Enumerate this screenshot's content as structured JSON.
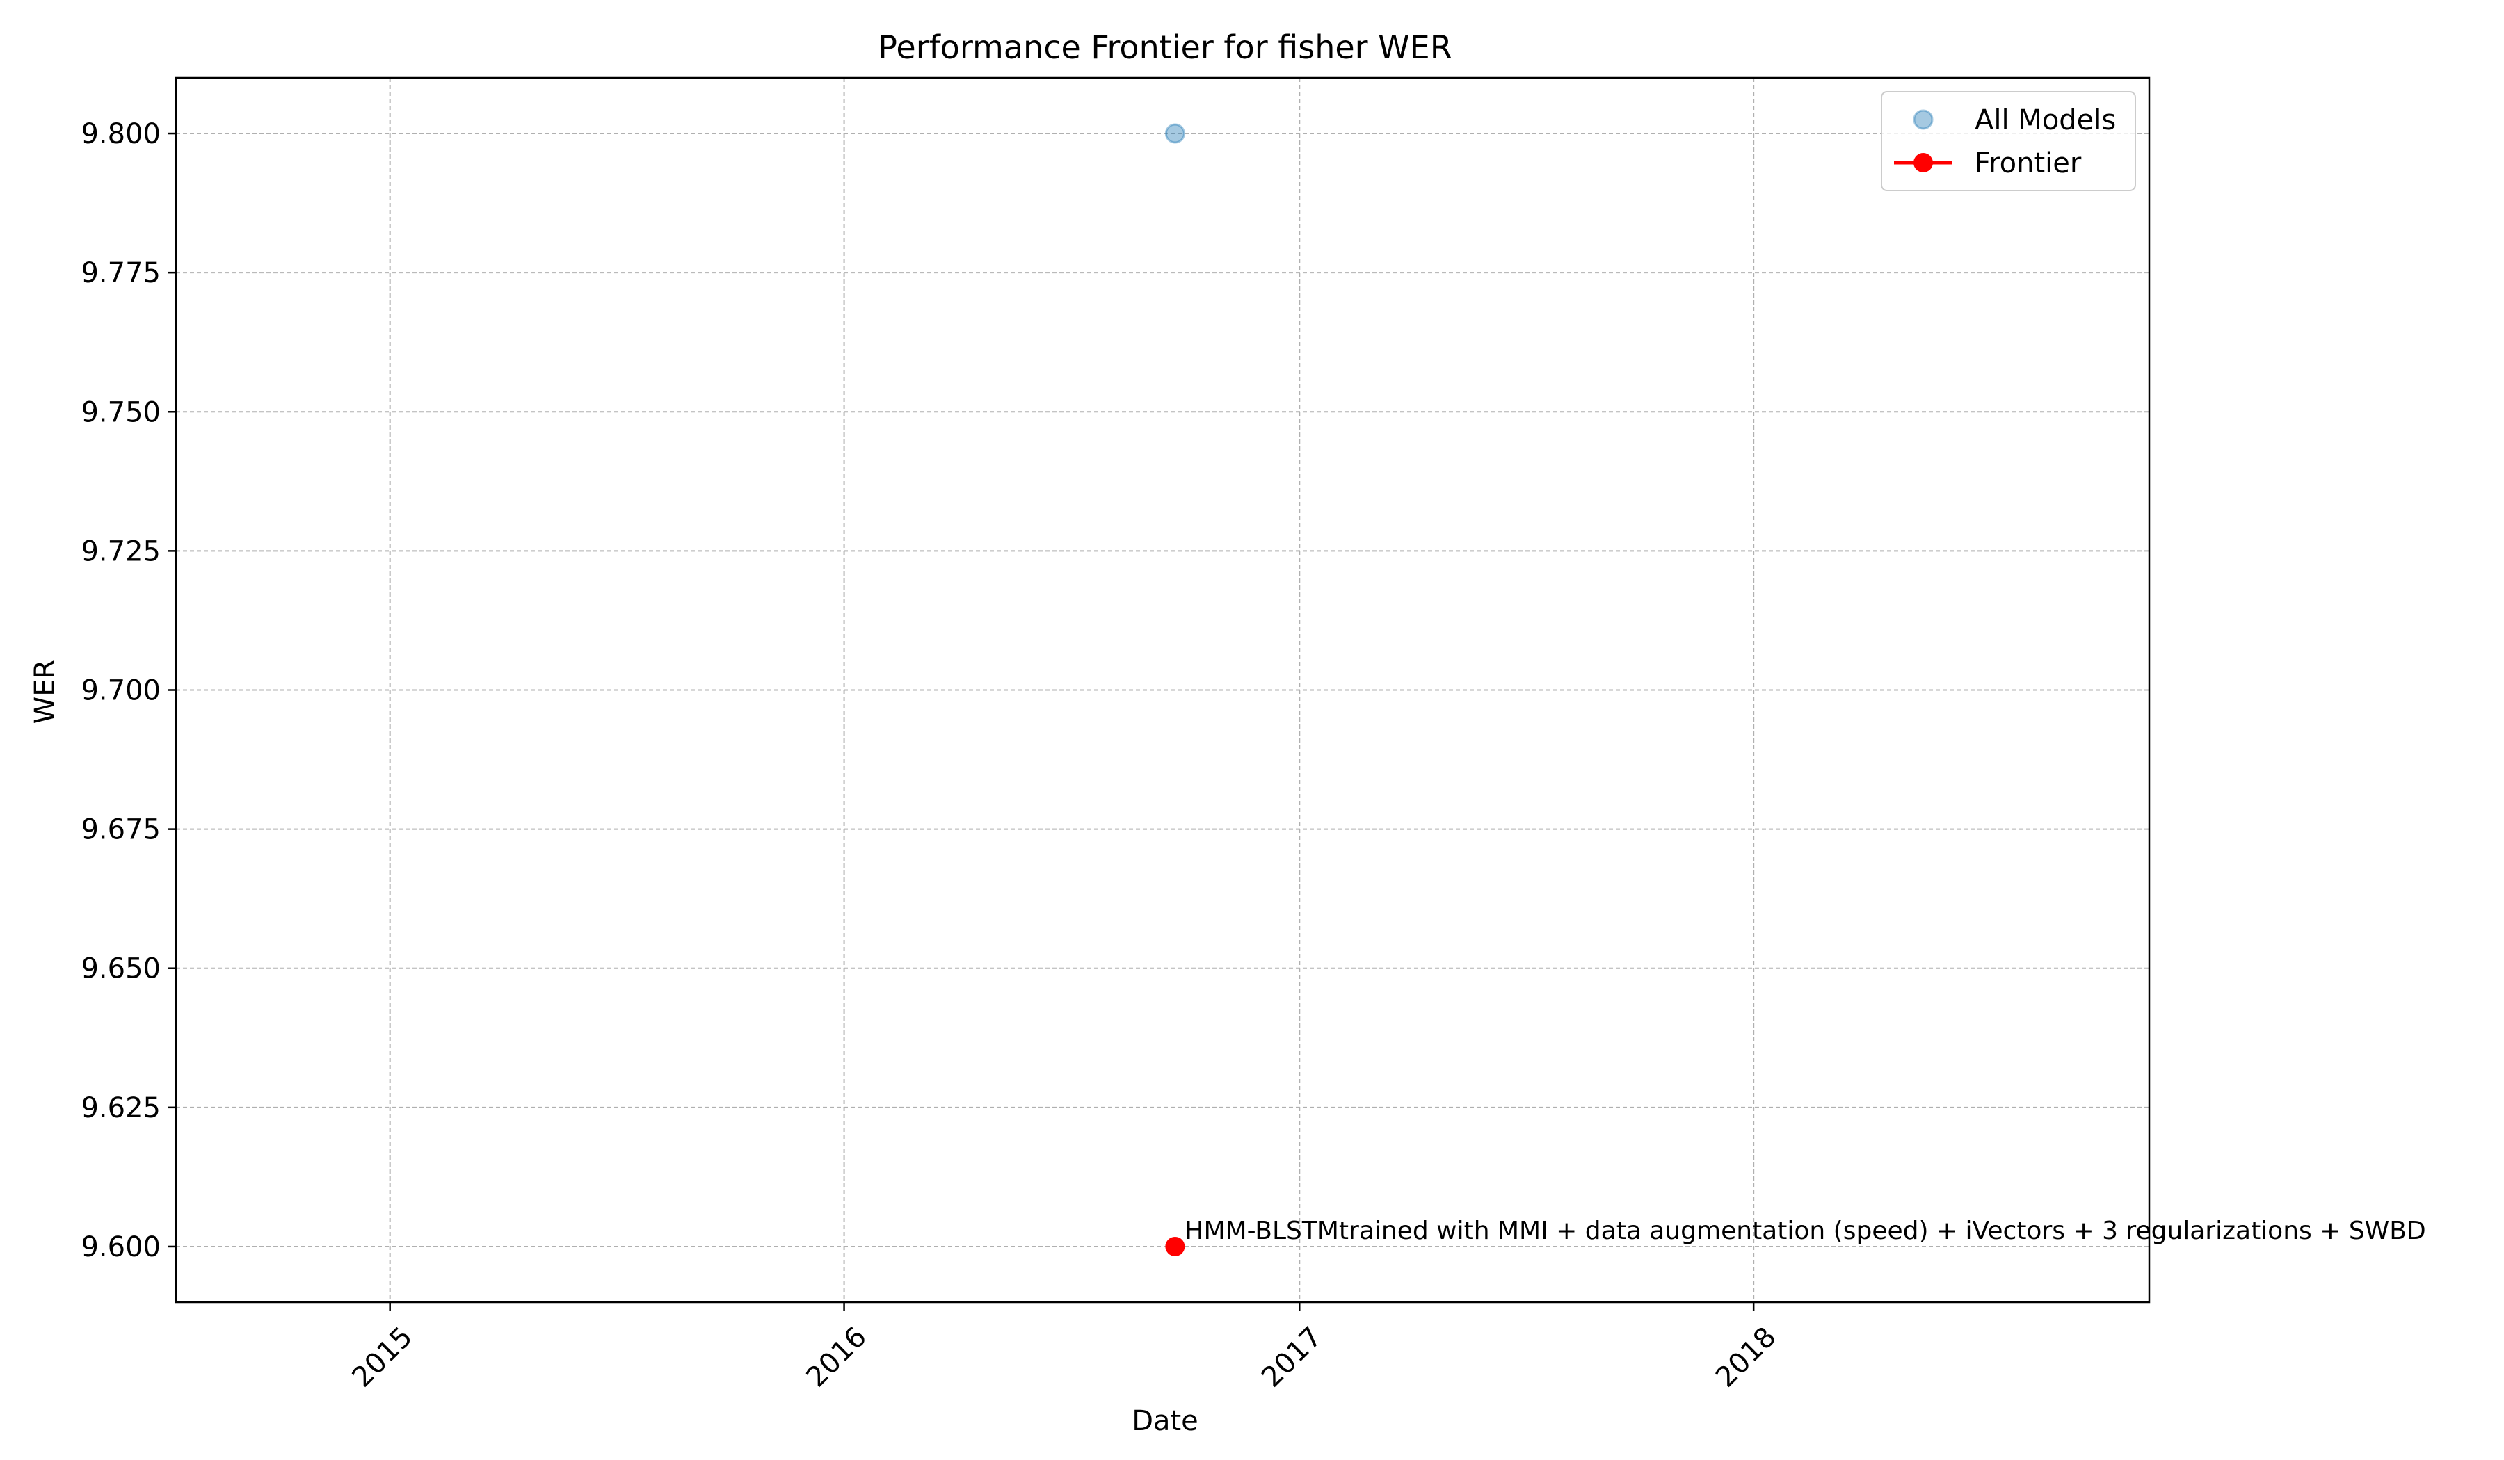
{
  "chart_data": {
    "type": "scatter",
    "title": "Performance Frontier for fisher WER",
    "xlabel": "Date",
    "ylabel": "WER",
    "x_axis_type": "date",
    "xlim": [
      "2014-07-13",
      "2018-11-15"
    ],
    "ylim": [
      9.59,
      9.81
    ],
    "x_ticks": [
      {
        "value": "2015-01-01",
        "label": "2015"
      },
      {
        "value": "2016-01-01",
        "label": "2016"
      },
      {
        "value": "2017-01-01",
        "label": "2017"
      },
      {
        "value": "2018-01-01",
        "label": "2018"
      }
    ],
    "x_tick_rotation": 45,
    "y_ticks": [
      {
        "value": 9.6,
        "label": "9.600"
      },
      {
        "value": 9.625,
        "label": "9.625"
      },
      {
        "value": 9.65,
        "label": "9.650"
      },
      {
        "value": 9.675,
        "label": "9.675"
      },
      {
        "value": 9.7,
        "label": "9.700"
      },
      {
        "value": 9.725,
        "label": "9.725"
      },
      {
        "value": 9.75,
        "label": "9.750"
      },
      {
        "value": 9.775,
        "label": "9.775"
      },
      {
        "value": 9.8,
        "label": "9.800"
      }
    ],
    "grid": true,
    "legend_position": "top-right",
    "series": [
      {
        "name": "All Models",
        "kind": "scatter",
        "color": "#1f77b4",
        "alpha": 0.4,
        "points": [
          {
            "x": "2016-09-23",
            "y": 9.8
          }
        ]
      },
      {
        "name": "Frontier",
        "kind": "line-with-markers",
        "color": "#ff0000",
        "points": [
          {
            "x": "2016-09-23",
            "y": 9.6
          }
        ]
      }
    ],
    "annotations": [
      {
        "text": "HMM-BLSTMtrained with MMI + data augmentation (speed) + iVectors + 3 regularizations + SWBD",
        "x": "2016-09-23",
        "y": 9.6
      }
    ]
  }
}
